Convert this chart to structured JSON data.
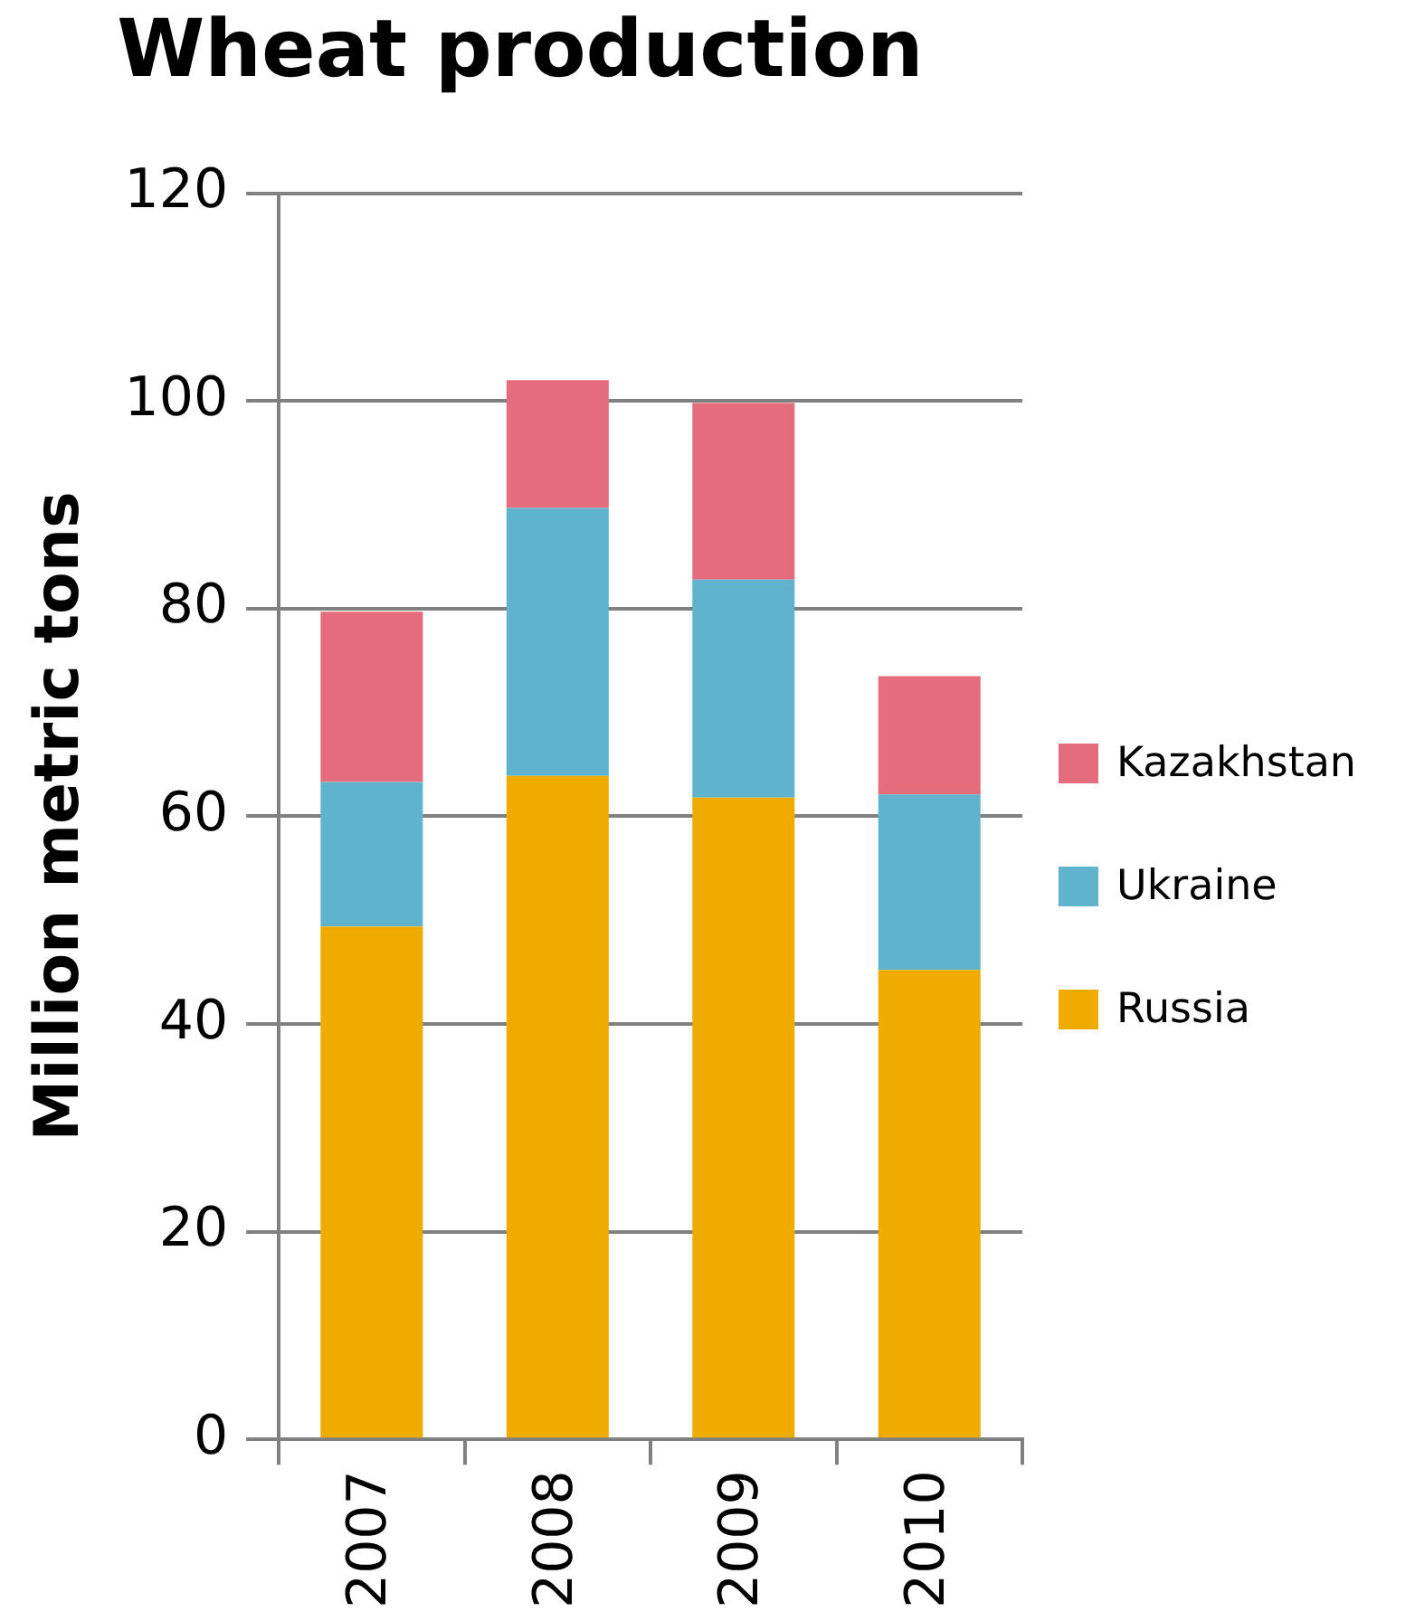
{
  "chart_data": {
    "type": "bar",
    "title": "Wheat production",
    "ylabel": "Million metric tons",
    "categories": [
      "2007",
      "2008",
      "2009",
      "2010"
    ],
    "stacked": true,
    "series": [
      {
        "name": "Russia",
        "color": "#f0ab00",
        "values": [
          49.4,
          63.9,
          61.8,
          45.2
        ]
      },
      {
        "name": "Ukraine",
        "color": "#60b3cc",
        "values": [
          13.9,
          25.8,
          21.0,
          16.9
        ]
      },
      {
        "name": "Kazakhstan",
        "color": "#e56c7d",
        "values": [
          16.4,
          12.3,
          17.0,
          11.4
        ]
      }
    ],
    "ylim": [
      0,
      120
    ],
    "yticks": [
      0,
      20,
      40,
      60,
      80,
      100,
      120
    ],
    "grid": "y",
    "legend": "right"
  }
}
